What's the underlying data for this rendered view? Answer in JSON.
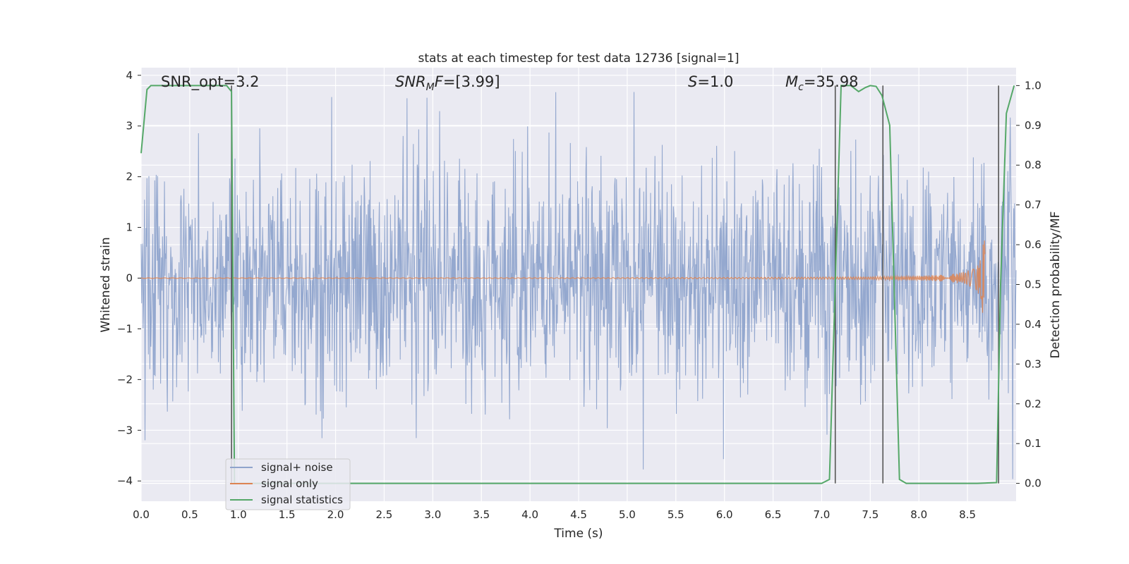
{
  "chart_data": {
    "type": "line",
    "title": "stats at each timestep for test data 12736 [signal=1]",
    "xlabel": "Time (s)",
    "ylabel": "Whitened strain",
    "ylabel_right": "Detection probability/MF",
    "xlim": [
      0.0,
      9.0
    ],
    "ylim": [
      -4.4,
      4.15
    ],
    "ylim_right": [
      -0.045,
      1.045
    ],
    "x_ticks": [
      "0.0",
      "0.5",
      "1.0",
      "1.5",
      "2.0",
      "2.5",
      "3.0",
      "3.5",
      "4.0",
      "4.5",
      "5.0",
      "5.5",
      "6.0",
      "6.5",
      "7.0",
      "7.5",
      "8.0",
      "8.5"
    ],
    "y_ticks": [
      "4",
      "3",
      "2",
      "1",
      "0",
      "−1",
      "−2",
      "−3",
      "−4"
    ],
    "y_ticks_right": [
      "1.0",
      "0.9",
      "0.8",
      "0.7",
      "0.6",
      "0.5",
      "0.4",
      "0.3",
      "0.2",
      "0.1",
      "0.0"
    ],
    "grid": true,
    "legend_position": "lower-left",
    "annotations": {
      "snr_opt": "SNR_opt=3.2",
      "snr_mf": "=[3.99]",
      "s": "=1.0",
      "mc": "=35.98"
    },
    "series": [
      {
        "name": "signal+ noise",
        "color": "#8fa4cc",
        "kind": "noise",
        "x_range": [
          0.0,
          9.0
        ],
        "envelope_1sigma": 1.0,
        "spike_extent": [
          -3.7,
          3.7
        ]
      },
      {
        "name": "signal only",
        "color": "#dd8452",
        "kind": "chirp",
        "x_range": [
          0.0,
          8.68
        ],
        "peak_time": 8.66,
        "peak_amplitude": 0.78
      },
      {
        "name": "signal statistics",
        "color": "#55a868",
        "kind": "line",
        "x": [
          0.0,
          0.06,
          0.1,
          0.3,
          0.6,
          0.88,
          0.93,
          0.96,
          1.02,
          2.0,
          3.0,
          4.0,
          5.0,
          6.0,
          7.0,
          7.08,
          7.14,
          7.2,
          7.3,
          7.38,
          7.45,
          7.5,
          7.56,
          7.62,
          7.7,
          7.8,
          7.87,
          8.0,
          8.3,
          8.6,
          8.8,
          8.84,
          8.9,
          8.98
        ],
        "y": [
          0.83,
          0.99,
          1.0,
          1.0,
          1.0,
          1.0,
          0.985,
          0.0,
          0.0,
          0.0,
          0.0,
          0.0,
          0.0,
          0.0,
          0.0,
          0.01,
          0.5,
          1.0,
          1.0,
          0.985,
          0.995,
          1.0,
          0.998,
          0.975,
          0.9,
          0.01,
          0.0,
          0.0,
          0.0,
          0.0,
          0.002,
          0.5,
          0.93,
          1.0
        ]
      }
    ],
    "vertical_lines": {
      "color": "#555555",
      "x": [
        0.93,
        7.14,
        7.63,
        8.82
      ],
      "ymin": 0.0,
      "ymax": 1.0
    }
  }
}
